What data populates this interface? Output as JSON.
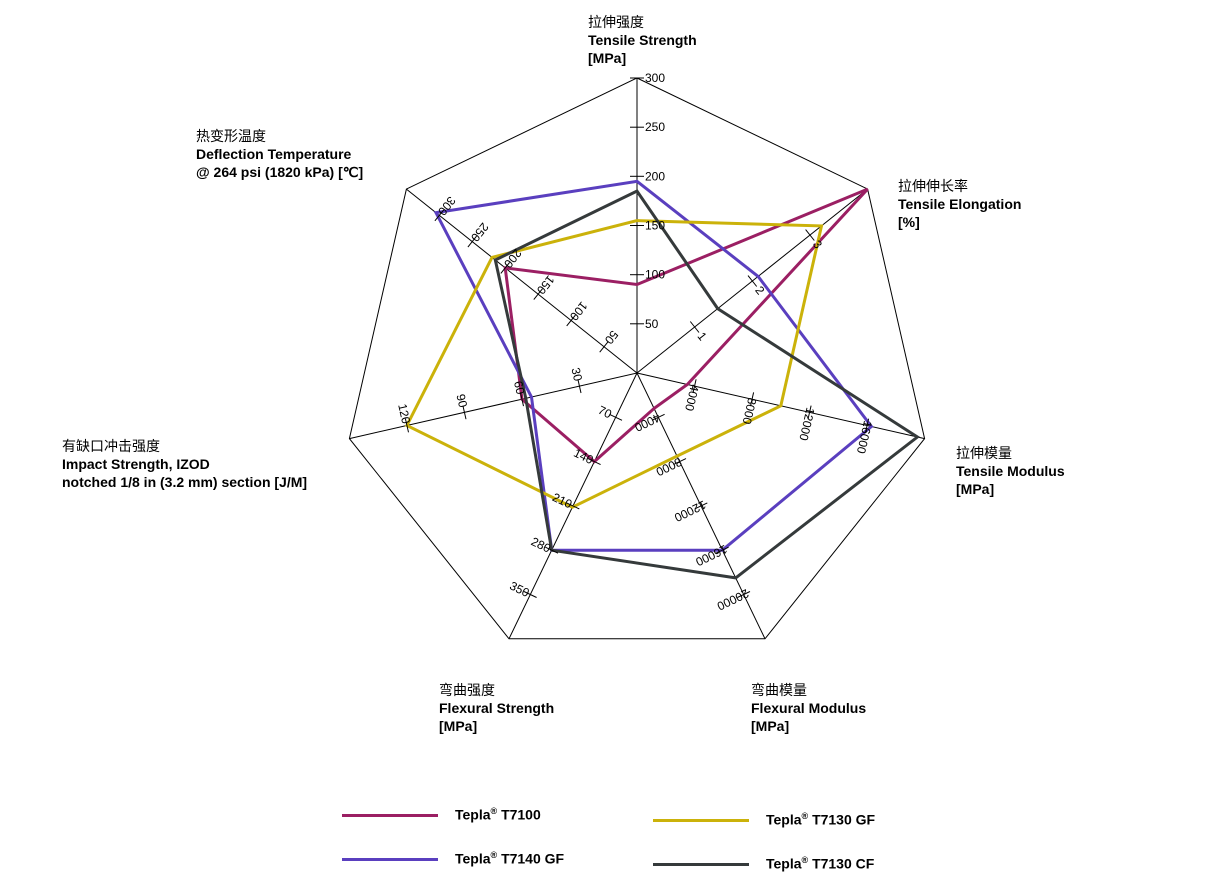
{
  "chart_data": {
    "type": "radar",
    "axes": [
      {
        "key": "tensile_strength",
        "zh": "拉伸强度",
        "en": "Tensile Strength",
        "unit": "[MPa]",
        "max": 300,
        "ticks": [
          50,
          100,
          150,
          200,
          250,
          300
        ]
      },
      {
        "key": "tensile_elongation",
        "zh": "拉伸伸长率",
        "en": "Tensile Elongation",
        "unit": "[%]",
        "max": 4,
        "ticks": [
          1,
          2,
          3
        ]
      },
      {
        "key": "tensile_modulus",
        "zh": "拉伸模量",
        "en": "Tensile Modulus",
        "unit": "[MPa]",
        "max": 20000,
        "ticks": [
          4000,
          8000,
          12000,
          16000
        ]
      },
      {
        "key": "flexural_modulus",
        "zh": "弯曲模量",
        "en": "Flexural Modulus",
        "unit": "[MPa]",
        "max": 24000,
        "ticks": [
          4000,
          8000,
          12000,
          16000,
          20000
        ]
      },
      {
        "key": "flexural_strength",
        "zh": "弯曲强度",
        "en": "Flexural Strength",
        "unit": "[MPa]",
        "max": 420,
        "ticks": [
          70,
          140,
          210,
          280,
          350
        ]
      },
      {
        "key": "impact_strength",
        "zh": "有缺口冲击强度",
        "en": "Impact Strength, IZOD",
        "en2": "notched 1/8 in (3.2 mm) section [J/M]",
        "unit": "",
        "max": 150,
        "ticks": [
          30,
          60,
          90,
          120
        ]
      },
      {
        "key": "deflection_temperature",
        "zh": "热变形温度",
        "en": "Deflection Temperature",
        "en2": "@ 264 psi (1820 kPa) [℃]",
        "unit": "",
        "max": 350,
        "ticks": [
          50,
          100,
          150,
          200,
          250,
          300
        ]
      }
    ],
    "series": [
      {
        "name": "Tepla® T7100",
        "brand": "Tepla",
        "model": "T7100",
        "color": "#9b1f63",
        "values": [
          90,
          4,
          3500,
          3200,
          140,
          60,
          200
        ]
      },
      {
        "name": "Tepla® T7140 GF",
        "brand": "Tepla",
        "model": "T7140 GF",
        "color": "#5a3fbf",
        "values": [
          195,
          2.1,
          16300,
          16000,
          280,
          55,
          305
        ]
      },
      {
        "name": "Tepla® T7130 GF",
        "brand": "Tepla",
        "model": "T7130 GF",
        "color": "#cbb20a",
        "values": [
          155,
          3.2,
          10000,
          7500,
          212,
          120,
          220
        ]
      },
      {
        "name": "Tepla® T7130 CF",
        "brand": "Tepla",
        "model": "T7130 CF",
        "color": "#353a3b",
        "values": [
          185,
          1.4,
          19500,
          18500,
          280,
          58,
          215
        ]
      }
    ],
    "legend_placement": "bottom"
  }
}
